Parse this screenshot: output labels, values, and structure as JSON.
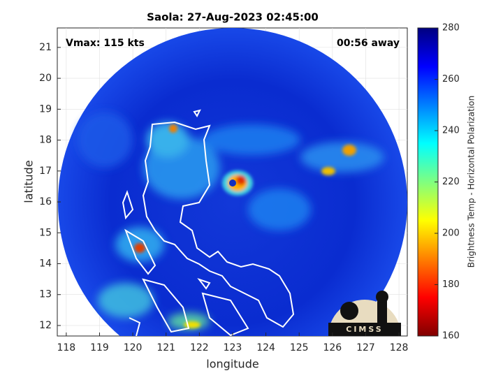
{
  "chart_data": {
    "type": "map",
    "title": "Saola: 27-Aug-2023 02:45:00",
    "annotations": [
      "Vmax: 115 kts",
      "00:56 away"
    ],
    "x_label": "longitude",
    "y_label": "latitude",
    "xlim": [
      117.73,
      128.25
    ],
    "xticks": [
      118,
      119,
      120,
      121,
      122,
      123,
      124,
      125,
      126,
      127,
      128
    ],
    "ylim": [
      11.66,
      21.63
    ],
    "yticks": [
      12,
      13,
      14,
      15,
      16,
      17,
      18,
      19,
      20,
      21
    ],
    "grid": true,
    "colorbar": {
      "label": "Brightness Temp - Horizontal Polarization",
      "lim": [
        160,
        280
      ],
      "ticks": [
        160,
        180,
        200,
        220,
        240,
        260,
        280
      ],
      "colormap": "jet"
    },
    "logo": "CIMSS"
  }
}
